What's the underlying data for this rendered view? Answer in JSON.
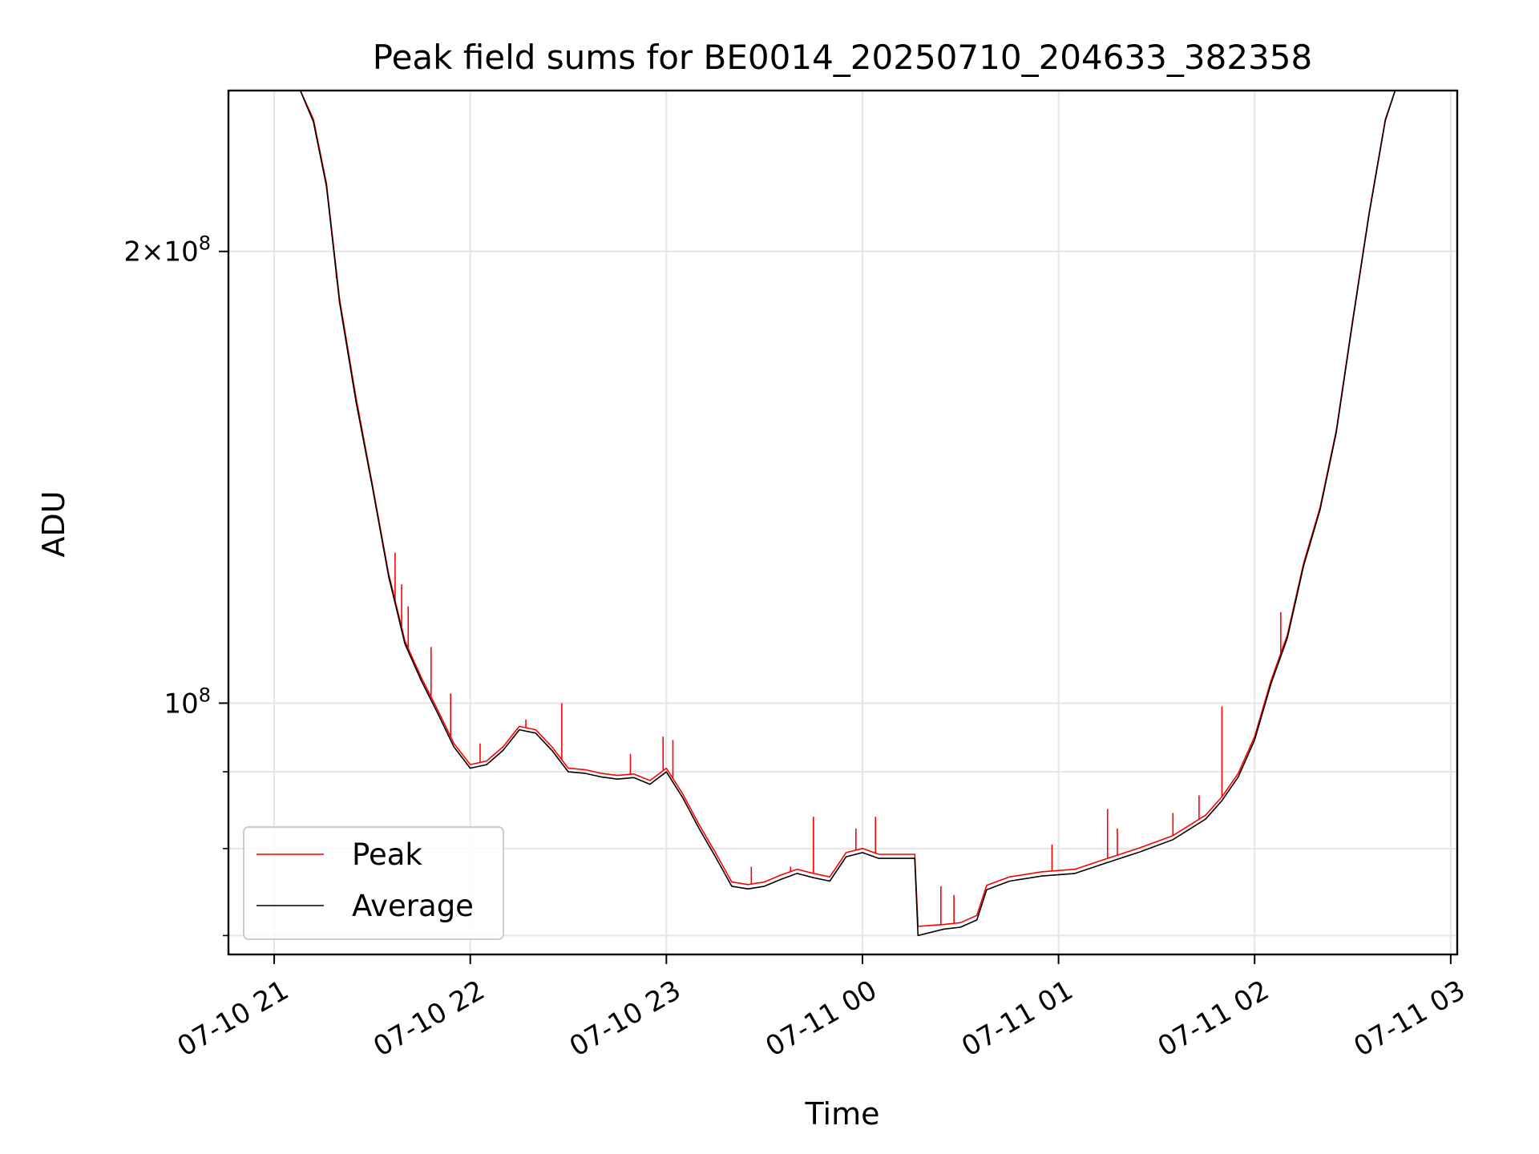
{
  "chart_data": {
    "type": "line",
    "title": "Peak field sums for BE0014_20250710_204633_382358",
    "xlabel": "Time",
    "ylabel": "ADU",
    "yscale": "log",
    "grid": true,
    "legend_position": "lower-left",
    "xlim": [
      "2025-07-10T20:46",
      "2025-07-11T03:02"
    ],
    "ylim": [
      68000000,
      256000000
    ],
    "x_ticks": [
      {
        "t": "2025-07-10T21:00",
        "label": "07-10 21"
      },
      {
        "t": "2025-07-10T22:00",
        "label": "07-10 22"
      },
      {
        "t": "2025-07-10T23:00",
        "label": "07-10 23"
      },
      {
        "t": "2025-07-11T00:00",
        "label": "07-11 00"
      },
      {
        "t": "2025-07-11T01:00",
        "label": "07-11 01"
      },
      {
        "t": "2025-07-11T02:00",
        "label": "07-11 02"
      },
      {
        "t": "2025-07-11T03:00",
        "label": "07-11 03"
      }
    ],
    "y_ticks": [
      {
        "v": 200000000,
        "base": "2×10",
        "exp": "8"
      },
      {
        "v": 100000000,
        "base": "10",
        "exp": "8"
      }
    ],
    "y_minor_ticks": [
      70000000,
      80000000,
      90000000
    ],
    "series": [
      {
        "name": "Peak",
        "color": "#ff0000",
        "x": [
          "2025-07-10T21:00",
          "2025-07-10T21:08",
          "2025-07-10T21:12",
          "2025-07-10T21:16",
          "2025-07-10T21:20",
          "2025-07-10T21:25",
          "2025-07-10T21:30",
          "2025-07-10T21:35",
          "2025-07-10T21:40",
          "2025-07-10T21:45",
          "2025-07-10T21:50",
          "2025-07-10T21:55",
          "2025-07-10T22:00",
          "2025-07-10T22:05",
          "2025-07-10T22:10",
          "2025-07-10T22:15",
          "2025-07-10T22:20",
          "2025-07-10T22:25",
          "2025-07-10T22:30",
          "2025-07-10T22:35",
          "2025-07-10T22:40",
          "2025-07-10T22:45",
          "2025-07-10T22:50",
          "2025-07-10T22:55",
          "2025-07-10T23:00",
          "2025-07-10T23:05",
          "2025-07-10T23:10",
          "2025-07-10T23:15",
          "2025-07-10T23:20",
          "2025-07-10T23:25",
          "2025-07-10T23:30",
          "2025-07-10T23:35",
          "2025-07-10T23:40",
          "2025-07-10T23:45",
          "2025-07-10T23:50",
          "2025-07-10T23:55",
          "2025-07-11T00:00",
          "2025-07-11T00:05",
          "2025-07-11T00:10",
          "2025-07-11T00:16",
          "2025-07-11T00:17",
          "2025-07-11T00:25",
          "2025-07-11T00:30",
          "2025-07-11T00:35",
          "2025-07-11T00:38",
          "2025-07-11T00:45",
          "2025-07-11T00:55",
          "2025-07-11T01:05",
          "2025-07-11T01:15",
          "2025-07-11T01:25",
          "2025-07-11T01:35",
          "2025-07-11T01:45",
          "2025-07-11T01:50",
          "2025-07-11T01:55",
          "2025-07-11T02:00",
          "2025-07-11T02:05",
          "2025-07-11T02:10",
          "2025-07-11T02:15",
          "2025-07-11T02:20",
          "2025-07-11T02:25",
          "2025-07-11T02:30",
          "2025-07-11T02:35",
          "2025-07-11T02:40",
          "2025-07-11T02:43"
        ],
        "y": [
          256000000,
          256000000,
          245000000,
          222000000,
          186000000,
          160000000,
          140000000,
          122000000,
          110000000,
          104000000,
          99000000,
          94000000,
          91000000,
          91500000,
          93500000,
          96500000,
          96000000,
          93500000,
          90500000,
          90300000,
          89800000,
          89500000,
          89700000,
          88800000,
          90500000,
          87000000,
          83000000,
          79500000,
          76000000,
          75700000,
          76000000,
          76800000,
          77500000,
          77000000,
          76600000,
          79500000,
          80000000,
          79300000,
          79300000,
          79300000,
          71000000,
          71200000,
          71400000,
          72200000,
          75600000,
          76600000,
          77200000,
          77500000,
          78800000,
          80100000,
          81600000,
          84200000,
          86600000,
          89800000,
          95000000,
          103500000,
          111000000,
          124000000,
          135000000,
          152000000,
          180000000,
          212000000,
          245000000,
          256000000
        ],
        "spikes": [
          {
            "x": "2025-07-10T21:19",
            "y": 192000000
          },
          {
            "x": "2025-07-10T21:37",
            "y": 126000000
          },
          {
            "x": "2025-07-10T21:39",
            "y": 120000000
          },
          {
            "x": "2025-07-10T21:41",
            "y": 116000000
          },
          {
            "x": "2025-07-10T21:48",
            "y": 109000000
          },
          {
            "x": "2025-07-10T21:54",
            "y": 101500000
          },
          {
            "x": "2025-07-10T22:03",
            "y": 94000000
          },
          {
            "x": "2025-07-10T22:17",
            "y": 97500000
          },
          {
            "x": "2025-07-10T22:28",
            "y": 100000000
          },
          {
            "x": "2025-07-10T22:49",
            "y": 92500000
          },
          {
            "x": "2025-07-10T22:59",
            "y": 95000000
          },
          {
            "x": "2025-07-10T23:02",
            "y": 94500000
          },
          {
            "x": "2025-07-10T23:26",
            "y": 77800000
          },
          {
            "x": "2025-07-10T23:38",
            "y": 77800000
          },
          {
            "x": "2025-07-10T23:45",
            "y": 84000000
          },
          {
            "x": "2025-07-10T23:58",
            "y": 82500000
          },
          {
            "x": "2025-07-11T00:04",
            "y": 84000000
          },
          {
            "x": "2025-07-11T00:24",
            "y": 75500000
          },
          {
            "x": "2025-07-11T00:28",
            "y": 74500000
          },
          {
            "x": "2025-07-11T00:58",
            "y": 80500000
          },
          {
            "x": "2025-07-11T01:15",
            "y": 85000000
          },
          {
            "x": "2025-07-11T01:18",
            "y": 82500000
          },
          {
            "x": "2025-07-11T01:35",
            "y": 84500000
          },
          {
            "x": "2025-07-11T01:43",
            "y": 86800000
          },
          {
            "x": "2025-07-11T01:50",
            "y": 99500000
          },
          {
            "x": "2025-07-11T02:08",
            "y": 115000000
          }
        ]
      },
      {
        "name": "Average",
        "color": "#000000",
        "x": [
          "2025-07-10T21:00",
          "2025-07-10T21:08",
          "2025-07-10T21:12",
          "2025-07-10T21:16",
          "2025-07-10T21:20",
          "2025-07-10T21:25",
          "2025-07-10T21:30",
          "2025-07-10T21:35",
          "2025-07-10T21:40",
          "2025-07-10T21:45",
          "2025-07-10T21:50",
          "2025-07-10T21:55",
          "2025-07-10T22:00",
          "2025-07-10T22:05",
          "2025-07-10T22:10",
          "2025-07-10T22:15",
          "2025-07-10T22:20",
          "2025-07-10T22:25",
          "2025-07-10T22:30",
          "2025-07-10T22:35",
          "2025-07-10T22:40",
          "2025-07-10T22:45",
          "2025-07-10T22:50",
          "2025-07-10T22:55",
          "2025-07-10T23:00",
          "2025-07-10T23:05",
          "2025-07-10T23:10",
          "2025-07-10T23:15",
          "2025-07-10T23:20",
          "2025-07-10T23:25",
          "2025-07-10T23:30",
          "2025-07-10T23:35",
          "2025-07-10T23:40",
          "2025-07-10T23:45",
          "2025-07-10T23:50",
          "2025-07-10T23:55",
          "2025-07-11T00:00",
          "2025-07-11T00:05",
          "2025-07-11T00:10",
          "2025-07-11T00:16",
          "2025-07-11T00:17",
          "2025-07-11T00:25",
          "2025-07-11T00:30",
          "2025-07-11T00:35",
          "2025-07-11T00:38",
          "2025-07-11T00:45",
          "2025-07-11T00:55",
          "2025-07-11T01:05",
          "2025-07-11T01:15",
          "2025-07-11T01:25",
          "2025-07-11T01:35",
          "2025-07-11T01:45",
          "2025-07-11T01:50",
          "2025-07-11T01:55",
          "2025-07-11T02:00",
          "2025-07-11T02:05",
          "2025-07-11T02:10",
          "2025-07-11T02:15",
          "2025-07-11T02:20",
          "2025-07-11T02:25",
          "2025-07-11T02:30",
          "2025-07-11T02:35",
          "2025-07-11T02:40",
          "2025-07-11T02:43"
        ],
        "y": [
          256000000,
          256000000,
          244000000,
          221000000,
          185000000,
          159000000,
          139500000,
          121500000,
          109500000,
          103500000,
          98500000,
          93500000,
          90500000,
          91000000,
          93000000,
          96000000,
          95500000,
          93000000,
          90000000,
          89800000,
          89300000,
          89000000,
          89200000,
          88300000,
          90000000,
          86500000,
          82500000,
          79000000,
          75500000,
          75200000,
          75500000,
          76300000,
          77000000,
          76500000,
          76100000,
          79000000,
          79500000,
          78800000,
          78800000,
          78800000,
          70000000,
          70700000,
          70900000,
          71700000,
          75100000,
          76100000,
          76700000,
          77000000,
          78300000,
          79600000,
          81100000,
          83700000,
          86100000,
          89300000,
          94500000,
          103000000,
          110500000,
          123500000,
          134500000,
          151500000,
          179500000,
          211500000,
          244500000,
          256000000
        ]
      }
    ]
  }
}
